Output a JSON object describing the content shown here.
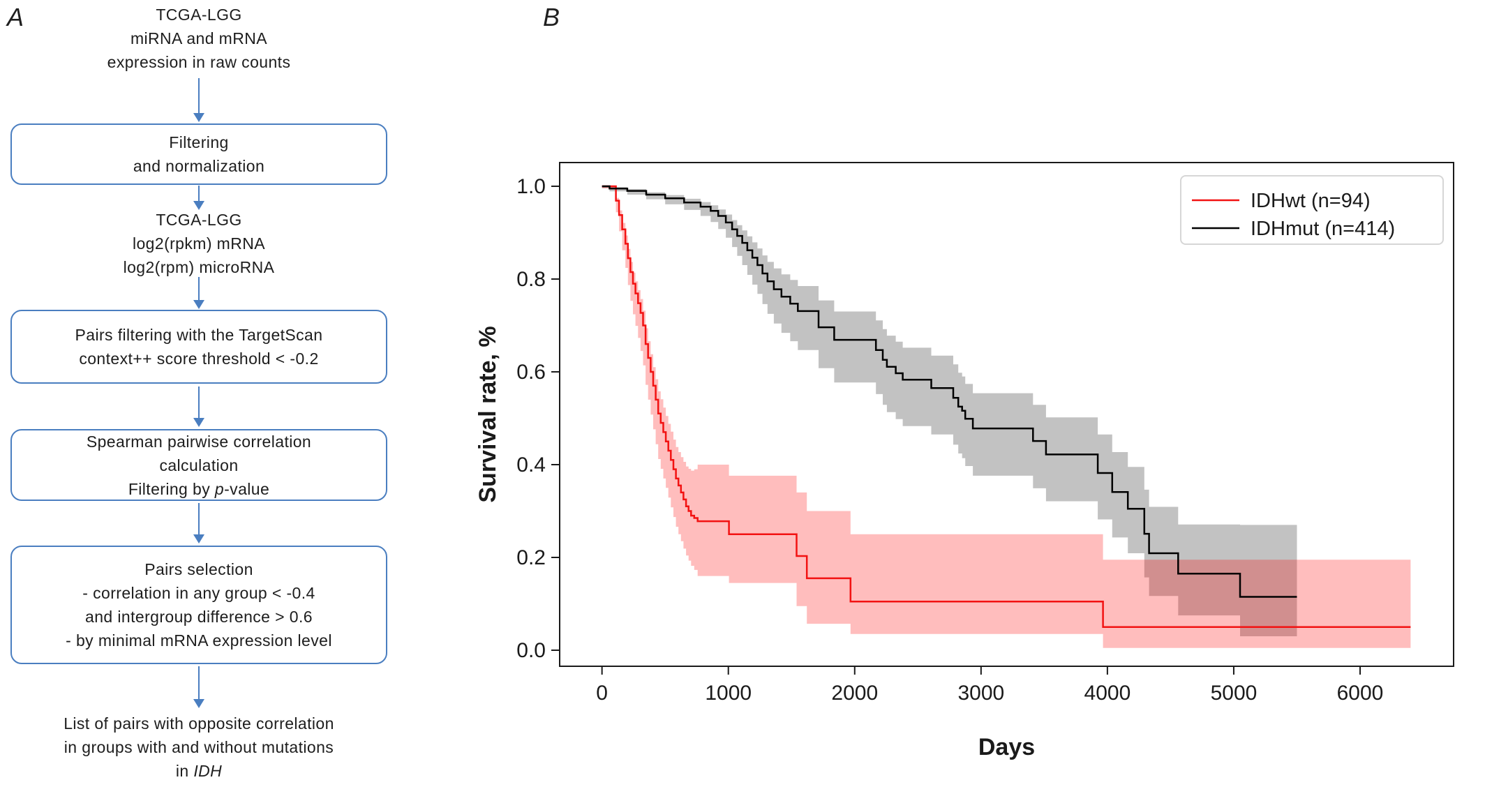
{
  "figure": {
    "panel_a_label": "A",
    "panel_b_label": "B"
  },
  "flowchart": {
    "accent_color": "#4a7ec0",
    "nodes": [
      {
        "kind": "text",
        "lines": [
          "TCGA-LGG",
          "miRNA and mRNA",
          "expression in raw counts"
        ]
      },
      {
        "kind": "arrow"
      },
      {
        "kind": "box",
        "lines": [
          "Filtering",
          "and normalization"
        ]
      },
      {
        "kind": "arrow"
      },
      {
        "kind": "text",
        "lines": [
          "TCGA-LGG",
          "log2(rpkm) mRNA",
          "log2(rpm) microRNA"
        ]
      },
      {
        "kind": "arrow"
      },
      {
        "kind": "box",
        "lines": [
          "Pairs filtering with the TargetScan",
          "context++ score threshold < -0.2"
        ]
      },
      {
        "kind": "arrow"
      },
      {
        "kind": "box",
        "lines": [
          "Spearman pairwise correlation",
          "calculation",
          "Filtering by *p*-value"
        ]
      },
      {
        "kind": "arrow"
      },
      {
        "kind": "box",
        "lines": [
          "Pairs selection",
          "- correlation in any group < -0.4",
          "and intergroup difference > 0.6",
          "- by minimal mRNA expression level"
        ]
      },
      {
        "kind": "arrow"
      },
      {
        "kind": "text",
        "lines": [
          "List of pairs with opposite correlation",
          "in groups with and without mutations",
          "in *IDH*"
        ]
      }
    ]
  },
  "chart_data": {
    "type": "line",
    "subtype": "kaplan-meier-step",
    "title": "",
    "xlabel": "Days",
    "ylabel": "Survival rate, %",
    "xlim": [
      -335,
      6740
    ],
    "ylim": [
      -0.0346,
      1.0511
    ],
    "xticks": [
      0,
      1000,
      2000,
      3000,
      4000,
      5000,
      6000
    ],
    "yticks": [
      0.0,
      0.2,
      0.4,
      0.6,
      0.8,
      1.0
    ],
    "grid": false,
    "frame": true,
    "legend_position": "upper right",
    "axis_color": "#1a1a1a",
    "series": [
      {
        "name": "IDHwt (n=94)",
        "color": "#f21212",
        "band_fill": "rgba(255,0,0,0.26)",
        "end_day": 6400,
        "points_format": [
          "day",
          "survival",
          "ci_upper_offset",
          "ci_lower_offset"
        ],
        "points": [
          [
            0,
            1.0,
            0.004,
            0.004
          ],
          [
            110,
            0.969,
            0.006,
            0.025
          ],
          [
            135,
            0.938,
            0.01,
            0.035
          ],
          [
            160,
            0.907,
            0.014,
            0.045
          ],
          [
            185,
            0.876,
            0.018,
            0.052
          ],
          [
            205,
            0.845,
            0.02,
            0.058
          ],
          [
            225,
            0.815,
            0.022,
            0.062
          ],
          [
            245,
            0.79,
            0.024,
            0.066
          ],
          [
            265,
            0.769,
            0.026,
            0.07
          ],
          [
            285,
            0.748,
            0.028,
            0.075
          ],
          [
            305,
            0.727,
            0.03,
            0.082
          ],
          [
            325,
            0.7,
            0.032,
            0.086
          ],
          [
            345,
            0.66,
            0.034,
            0.088
          ],
          [
            365,
            0.63,
            0.036,
            0.09
          ],
          [
            385,
            0.6,
            0.038,
            0.092
          ],
          [
            405,
            0.57,
            0.04,
            0.094
          ],
          [
            425,
            0.54,
            0.044,
            0.096
          ],
          [
            445,
            0.51,
            0.048,
            0.098
          ],
          [
            465,
            0.49,
            0.051,
            0.099
          ],
          [
            485,
            0.47,
            0.053,
            0.1
          ],
          [
            505,
            0.45,
            0.055,
            0.1
          ],
          [
            525,
            0.43,
            0.058,
            0.101
          ],
          [
            545,
            0.41,
            0.061,
            0.102
          ],
          [
            565,
            0.39,
            0.064,
            0.103
          ],
          [
            585,
            0.37,
            0.068,
            0.104
          ],
          [
            605,
            0.355,
            0.072,
            0.105
          ],
          [
            625,
            0.34,
            0.076,
            0.105
          ],
          [
            645,
            0.325,
            0.081,
            0.106
          ],
          [
            665,
            0.31,
            0.086,
            0.106
          ],
          [
            685,
            0.3,
            0.091,
            0.107
          ],
          [
            705,
            0.29,
            0.097,
            0.108
          ],
          [
            730,
            0.285,
            0.105,
            0.112
          ],
          [
            757,
            0.278,
            0.122,
            0.118
          ],
          [
            1005,
            0.25,
            0.126,
            0.105
          ],
          [
            1540,
            0.203,
            0.137,
            0.108
          ],
          [
            1621,
            0.155,
            0.145,
            0.098
          ],
          [
            1967,
            0.105,
            0.145,
            0.07
          ],
          [
            3965,
            0.05,
            0.145,
            0.045
          ]
        ]
      },
      {
        "name": "IDHmut (n=414)",
        "color": "#000000",
        "band_fill": "rgba(0,0,0,0.24)",
        "end_day": 5500,
        "points_format": [
          "day",
          "survival",
          "ci_upper_offset",
          "ci_lower_offset"
        ],
        "points": [
          [
            0,
            1.0,
            0.002,
            0.004
          ],
          [
            60,
            0.995,
            0.003,
            0.006
          ],
          [
            200,
            0.99,
            0.004,
            0.008
          ],
          [
            350,
            0.982,
            0.005,
            0.01
          ],
          [
            500,
            0.974,
            0.007,
            0.013
          ],
          [
            650,
            0.965,
            0.008,
            0.016
          ],
          [
            780,
            0.956,
            0.01,
            0.02
          ],
          [
            860,
            0.947,
            0.012,
            0.024
          ],
          [
            920,
            0.936,
            0.014,
            0.028
          ],
          [
            980,
            0.922,
            0.017,
            0.033
          ],
          [
            1030,
            0.907,
            0.02,
            0.038
          ],
          [
            1070,
            0.893,
            0.023,
            0.043
          ],
          [
            1110,
            0.878,
            0.027,
            0.048
          ],
          [
            1150,
            0.862,
            0.03,
            0.053
          ],
          [
            1190,
            0.846,
            0.033,
            0.058
          ],
          [
            1230,
            0.83,
            0.036,
            0.062
          ],
          [
            1270,
            0.812,
            0.039,
            0.066
          ],
          [
            1310,
            0.795,
            0.042,
            0.07
          ],
          [
            1360,
            0.778,
            0.045,
            0.074
          ],
          [
            1420,
            0.762,
            0.048,
            0.078
          ],
          [
            1490,
            0.747,
            0.051,
            0.081
          ],
          [
            1550,
            0.731,
            0.054,
            0.084
          ],
          [
            1714,
            0.696,
            0.058,
            0.088
          ],
          [
            1838,
            0.669,
            0.061,
            0.092
          ],
          [
            2168,
            0.647,
            0.064,
            0.095
          ],
          [
            2222,
            0.626,
            0.066,
            0.097
          ],
          [
            2255,
            0.611,
            0.067,
            0.098
          ],
          [
            2325,
            0.597,
            0.068,
            0.099
          ],
          [
            2380,
            0.583,
            0.069,
            0.1
          ],
          [
            2606,
            0.565,
            0.07,
            0.1
          ],
          [
            2780,
            0.544,
            0.072,
            0.101
          ],
          [
            2820,
            0.525,
            0.073,
            0.101
          ],
          [
            2850,
            0.516,
            0.074,
            0.102
          ],
          [
            2875,
            0.499,
            0.075,
            0.102
          ],
          [
            2935,
            0.478,
            0.076,
            0.102
          ],
          [
            3411,
            0.451,
            0.078,
            0.102
          ],
          [
            3514,
            0.422,
            0.08,
            0.101
          ],
          [
            3924,
            0.382,
            0.083,
            0.1
          ],
          [
            4038,
            0.341,
            0.086,
            0.098
          ],
          [
            4162,
            0.305,
            0.09,
            0.096
          ],
          [
            4292,
            0.251,
            0.095,
            0.094
          ],
          [
            4330,
            0.209,
            0.1,
            0.092
          ],
          [
            4560,
            0.165,
            0.106,
            0.09
          ],
          [
            5050,
            0.115,
            0.155,
            0.085
          ]
        ]
      }
    ]
  }
}
